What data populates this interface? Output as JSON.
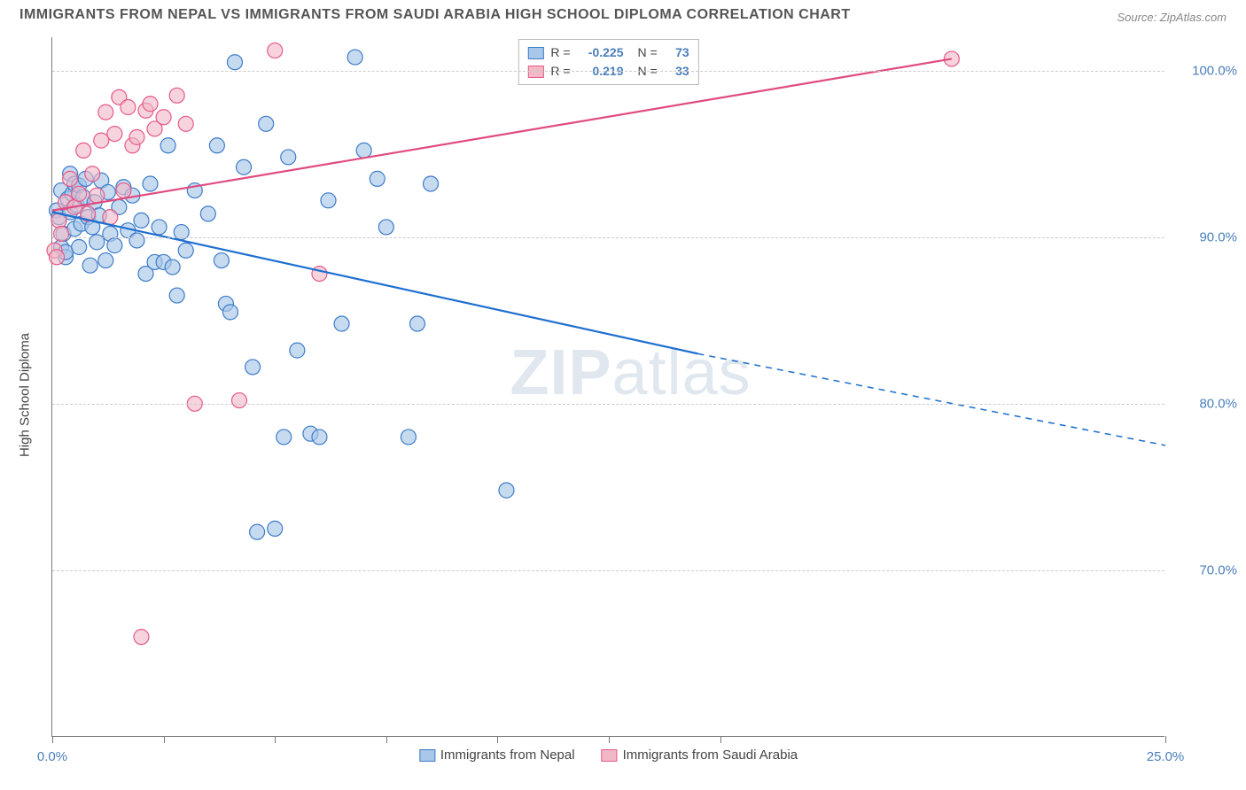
{
  "title": "IMMIGRANTS FROM NEPAL VS IMMIGRANTS FROM SAUDI ARABIA HIGH SCHOOL DIPLOMA CORRELATION CHART",
  "source": "Source: ZipAtlas.com",
  "y_axis_title": "High School Diploma",
  "watermark": {
    "bold": "ZIP",
    "light": "atlas"
  },
  "chart": {
    "type": "scatter",
    "background_color": "#ffffff",
    "grid_color": "#cccccc",
    "border_color": "#777777",
    "xlim": [
      0,
      25
    ],
    "ylim": [
      60,
      102
    ],
    "x_ticks": [
      0,
      2.5,
      5,
      7.5,
      10,
      12.5,
      15,
      25
    ],
    "x_tick_labels": {
      "0": "0.0%",
      "25": "25.0%"
    },
    "y_ticks": [
      70,
      80,
      90,
      100
    ],
    "y_tick_labels": {
      "70": "70.0%",
      "80": "80.0%",
      "90": "90.0%",
      "100": "100.0%"
    },
    "marker_radius": 8.5,
    "marker_stroke_width": 1.2,
    "line_width": 2.2
  },
  "series": [
    {
      "key": "nepal",
      "label": "Immigrants from Nepal",
      "fill": "#a9c7e8",
      "stroke": "#3d7cc9",
      "line_color": "#1f6fd0",
      "fill_opacity": 0.65,
      "R": "-0.225",
      "N": "73",
      "regression": {
        "start": [
          0,
          91.5
        ],
        "solid_end": [
          14.5,
          83
        ],
        "dashed_end": [
          25,
          77.5
        ]
      },
      "points": [
        [
          0.1,
          91.6
        ],
        [
          0.15,
          91.2
        ],
        [
          0.2,
          92.8
        ],
        [
          0.2,
          89.4
        ],
        [
          0.25,
          90.2
        ],
        [
          0.3,
          88.8
        ],
        [
          0.3,
          89.1
        ],
        [
          0.35,
          92.3
        ],
        [
          0.4,
          91.5
        ],
        [
          0.4,
          93.8
        ],
        [
          0.45,
          92.6
        ],
        [
          0.5,
          93.2
        ],
        [
          0.5,
          90.5
        ],
        [
          0.55,
          91.9
        ],
        [
          0.6,
          93.1
        ],
        [
          0.6,
          89.4
        ],
        [
          0.65,
          90.8
        ],
        [
          0.7,
          92.4
        ],
        [
          0.75,
          93.5
        ],
        [
          0.8,
          91.2
        ],
        [
          0.85,
          88.3
        ],
        [
          0.9,
          90.6
        ],
        [
          0.95,
          92.1
        ],
        [
          1.0,
          89.7
        ],
        [
          1.05,
          91.3
        ],
        [
          1.1,
          93.4
        ],
        [
          1.2,
          88.6
        ],
        [
          1.25,
          92.7
        ],
        [
          1.3,
          90.2
        ],
        [
          1.4,
          89.5
        ],
        [
          1.5,
          91.8
        ],
        [
          1.6,
          93.0
        ],
        [
          1.7,
          90.4
        ],
        [
          1.8,
          92.5
        ],
        [
          1.9,
          89.8
        ],
        [
          2.0,
          91.0
        ],
        [
          2.1,
          87.8
        ],
        [
          2.2,
          93.2
        ],
        [
          2.3,
          88.5
        ],
        [
          2.4,
          90.6
        ],
        [
          2.5,
          88.5
        ],
        [
          2.6,
          95.5
        ],
        [
          2.7,
          88.2
        ],
        [
          2.8,
          86.5
        ],
        [
          2.9,
          90.3
        ],
        [
          3.0,
          89.2
        ],
        [
          3.2,
          92.8
        ],
        [
          3.5,
          91.4
        ],
        [
          3.7,
          95.5
        ],
        [
          3.8,
          88.6
        ],
        [
          3.9,
          86.0
        ],
        [
          4.0,
          85.5
        ],
        [
          4.1,
          100.5
        ],
        [
          4.3,
          94.2
        ],
        [
          4.5,
          82.2
        ],
        [
          4.6,
          72.3
        ],
        [
          4.8,
          96.8
        ],
        [
          5.0,
          72.5
        ],
        [
          5.2,
          78.0
        ],
        [
          5.3,
          94.8
        ],
        [
          5.5,
          83.2
        ],
        [
          5.8,
          78.2
        ],
        [
          6.0,
          78.0
        ],
        [
          6.2,
          92.2
        ],
        [
          6.5,
          84.8
        ],
        [
          6.8,
          100.8
        ],
        [
          7.0,
          95.2
        ],
        [
          7.3,
          93.5
        ],
        [
          7.5,
          90.6
        ],
        [
          8.0,
          78.0
        ],
        [
          8.2,
          84.8
        ],
        [
          8.5,
          93.2
        ],
        [
          10.2,
          74.8
        ]
      ]
    },
    {
      "key": "saudi",
      "label": "Immigrants from Saudi Arabia",
      "fill": "#f2b8c6",
      "stroke": "#e55a8a",
      "line_color": "#e04b80",
      "fill_opacity": 0.6,
      "R": "0.219",
      "N": "33",
      "regression": {
        "start": [
          0,
          91.6
        ],
        "solid_end": [
          20.2,
          100.7
        ],
        "dashed_end": null
      },
      "points": [
        [
          0.05,
          89.2
        ],
        [
          0.1,
          88.8
        ],
        [
          0.15,
          91.0
        ],
        [
          0.2,
          90.2
        ],
        [
          0.3,
          92.1
        ],
        [
          0.4,
          93.5
        ],
        [
          0.5,
          91.8
        ],
        [
          0.6,
          92.6
        ],
        [
          0.7,
          95.2
        ],
        [
          0.8,
          91.4
        ],
        [
          0.9,
          93.8
        ],
        [
          1.0,
          92.5
        ],
        [
          1.1,
          95.8
        ],
        [
          1.2,
          97.5
        ],
        [
          1.3,
          91.2
        ],
        [
          1.4,
          96.2
        ],
        [
          1.5,
          98.4
        ],
        [
          1.6,
          92.8
        ],
        [
          1.7,
          97.8
        ],
        [
          1.8,
          95.5
        ],
        [
          1.9,
          96.0
        ],
        [
          2.0,
          66.0
        ],
        [
          2.1,
          97.6
        ],
        [
          2.2,
          98.0
        ],
        [
          2.3,
          96.5
        ],
        [
          2.5,
          97.2
        ],
        [
          2.8,
          98.5
        ],
        [
          3.0,
          96.8
        ],
        [
          3.2,
          80.0
        ],
        [
          4.2,
          80.2
        ],
        [
          5.0,
          101.2
        ],
        [
          6.0,
          87.8
        ],
        [
          20.2,
          100.7
        ]
      ]
    }
  ],
  "legend_top": {
    "r_label": "R =",
    "n_label": "N ="
  },
  "colors": {
    "axis_label": "#4a7ebb",
    "text_muted": "#888888",
    "text_body": "#555555"
  }
}
